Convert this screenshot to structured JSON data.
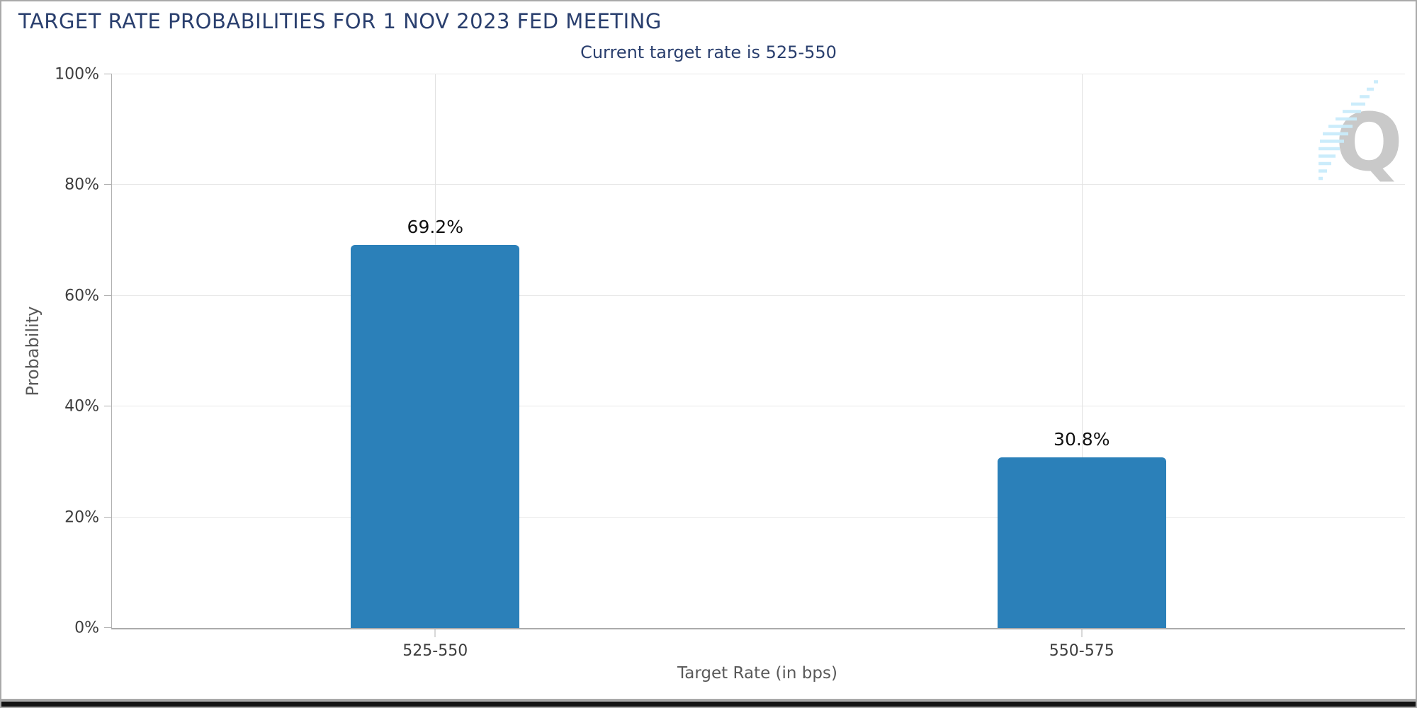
{
  "page": {
    "title": "TARGET RATE PROBABILITIES FOR 1 NOV 2023 FED MEETING"
  },
  "watermark": {
    "letter": "Q"
  },
  "colors": {
    "bar": "#2b80b9",
    "title_text": "#2a3f6e",
    "axis_text": "#3d3d3d",
    "axis_title_text": "#595959",
    "gridline": "#e8e8e8",
    "watermark_gray": "#c9c9c9",
    "watermark_blue": "#c9ecfb"
  },
  "chart_data": {
    "type": "bar",
    "title": "TARGET RATE PROBABILITIES FOR 1 NOV 2023 FED MEETING",
    "subtitle": "Current target rate is 525-550",
    "categories": [
      "525-550",
      "550-575"
    ],
    "values": [
      69.2,
      30.8
    ],
    "value_labels": [
      "69.2%",
      "30.8%"
    ],
    "xlabel": "Target Rate (in bps)",
    "ylabel": "Probability",
    "ylim": [
      0,
      100
    ],
    "yticks": [
      0,
      20,
      40,
      60,
      80,
      100
    ],
    "ytick_labels": [
      "0%",
      "20%",
      "40%",
      "60%",
      "80%",
      "100%"
    ],
    "grid": true,
    "legend": "none",
    "bar_color": "#2b80b9"
  }
}
